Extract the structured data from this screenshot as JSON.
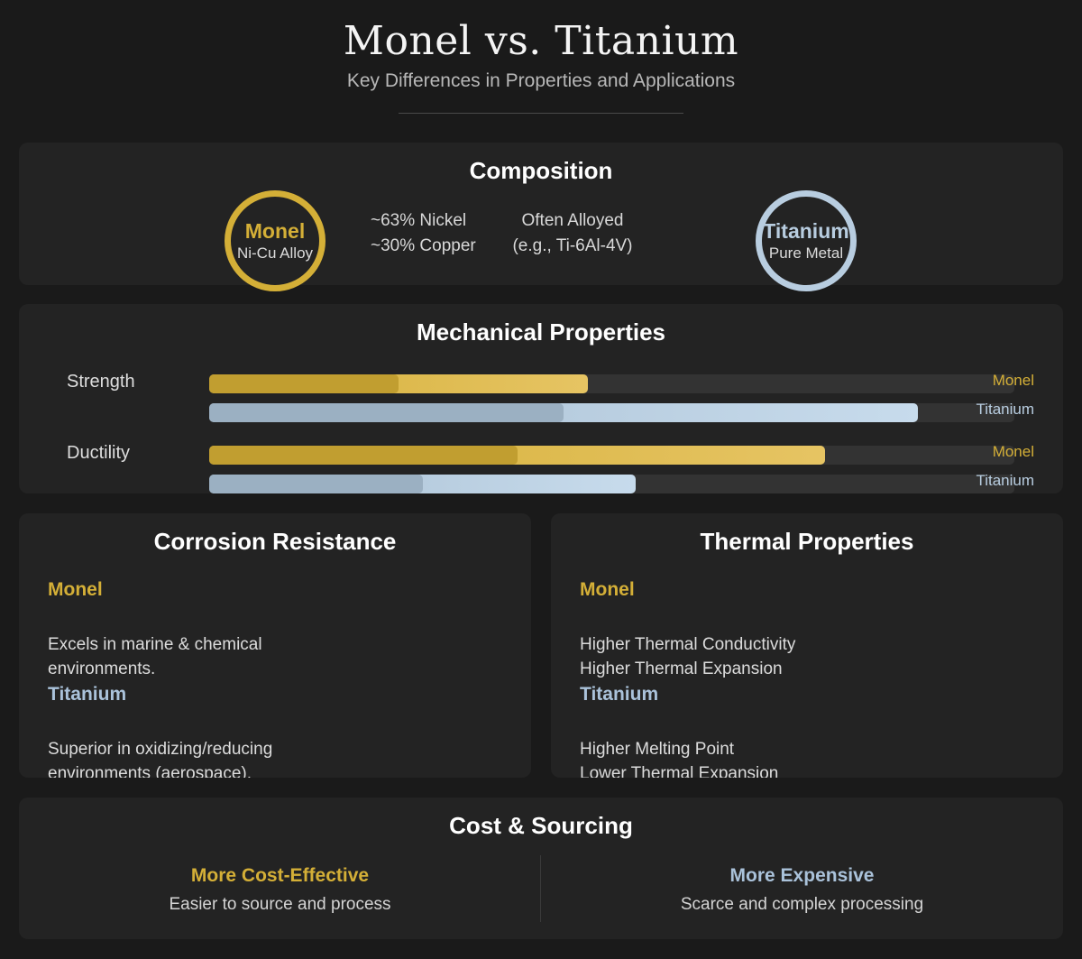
{
  "header": {
    "title": "Monel vs. Titanium",
    "subtitle": "Key Differences in Properties and Applications"
  },
  "colors": {
    "background": "#1a1a1a",
    "card": "#232323",
    "monel": "#d4af37",
    "titanium": "#b8cde0",
    "track": "#333333"
  },
  "composition": {
    "title": "Composition",
    "monel": {
      "name": "Monel",
      "type": "Ni-Cu Alloy",
      "details": [
        "~63% Nickel",
        "~30% Copper"
      ]
    },
    "titanium": {
      "name": "Titanium",
      "type": "Pure Metal",
      "details": [
        "Often Alloyed",
        "(e.g., Ti-6Al-4V)"
      ]
    }
  },
  "mechanical": {
    "title": "Mechanical Properties",
    "properties": [
      {
        "label": "Strength",
        "bars": [
          {
            "material": "Monel",
            "percent": 47
          },
          {
            "material": "Titanium",
            "percent": 88
          }
        ]
      },
      {
        "label": "Ductility",
        "bars": [
          {
            "material": "Monel",
            "percent": 76.5
          },
          {
            "material": "Titanium",
            "percent": 53
          }
        ]
      }
    ]
  },
  "chart_data": {
    "type": "bar",
    "orientation": "horizontal",
    "title": "Mechanical Properties",
    "categories": [
      "Strength",
      "Ductility"
    ],
    "series": [
      {
        "name": "Monel",
        "values": [
          47,
          76.5
        ],
        "color": "#d4af37"
      },
      {
        "name": "Titanium",
        "values": [
          88,
          53
        ],
        "color": "#b8cde0"
      }
    ],
    "xlim": [
      0,
      100
    ],
    "xlabel": "",
    "ylabel": "",
    "grid": false,
    "legend": "inline-right"
  },
  "corrosion": {
    "title": "Corrosion Resistance",
    "monel": {
      "name": "Monel",
      "text": "Excels in marine & chemical environments."
    },
    "titanium": {
      "name": "Titanium",
      "text": "Superior in oxidizing/reducing environments (aerospace)."
    }
  },
  "thermal": {
    "title": "Thermal Properties",
    "monel": {
      "name": "Monel",
      "lines": [
        "Higher Thermal Conductivity",
        "Higher Thermal Expansion"
      ]
    },
    "titanium": {
      "name": "Titanium",
      "lines": [
        "Higher Melting Point",
        "Lower Thermal Expansion"
      ]
    }
  },
  "cost": {
    "title": "Cost & Sourcing",
    "monel": {
      "heading": "More Cost-Effective",
      "text": "Easier to source and process"
    },
    "titanium": {
      "heading": "More Expensive",
      "text": "Scarce and complex processing"
    }
  }
}
